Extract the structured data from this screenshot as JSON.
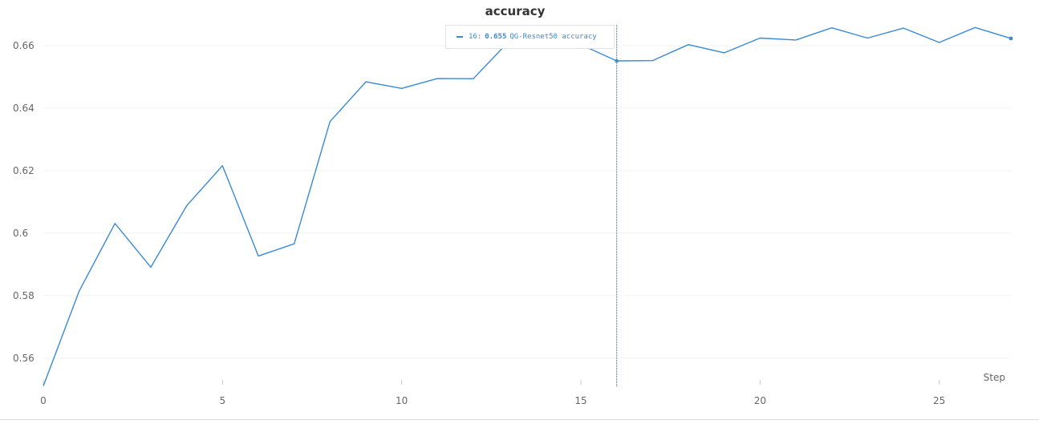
{
  "colors": {
    "series": "#3a8ad4",
    "hover_line": "#2c5aa0"
  },
  "chart_data": {
    "type": "line",
    "title": "accuracy",
    "xlabel": "Step",
    "ylabel": "",
    "xlim": [
      0,
      27
    ],
    "ylim": [
      0.551,
      0.671
    ],
    "x_ticks": [
      0,
      5,
      10,
      15,
      20,
      25
    ],
    "x_tick_labels": [
      "0",
      "5",
      "10",
      "15",
      "20",
      "25"
    ],
    "y_ticks": [
      0.56,
      0.58,
      0.6,
      0.62,
      0.64,
      0.66
    ],
    "y_tick_labels": [
      "0.56",
      "0.58",
      "0.6",
      "0.62",
      "0.64",
      "0.66"
    ],
    "grid": true,
    "series": [
      {
        "name": "QG-Resnet50 accuracy",
        "x": [
          0,
          1,
          2,
          3,
          4,
          5,
          6,
          7,
          8,
          9,
          10,
          11,
          12,
          13,
          14,
          15,
          16,
          17,
          18,
          19,
          20,
          21,
          22,
          23,
          24,
          25,
          26,
          27
        ],
        "values": [
          0.5511,
          0.5815,
          0.6031,
          0.5891,
          0.6088,
          0.6216,
          0.5927,
          0.5966,
          0.6357,
          0.6484,
          0.6463,
          0.6495,
          0.6494,
          0.6615,
          0.6625,
          0.6603,
          0.6551,
          0.6552,
          0.6603,
          0.6577,
          0.6624,
          0.6618,
          0.6657,
          0.6624,
          0.6656,
          0.661,
          0.6658,
          0.6623
        ]
      }
    ],
    "hover": {
      "step": 16,
      "step_label": "16:",
      "value_label": "0.655",
      "series_label": "QG-Resnet50 accuracy"
    }
  }
}
